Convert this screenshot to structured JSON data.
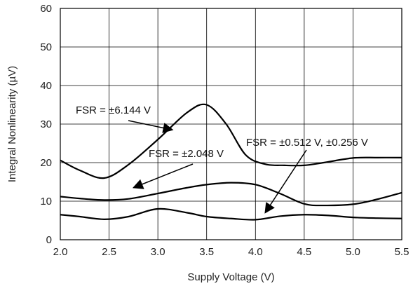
{
  "chart_data": {
    "type": "line",
    "title": "",
    "xlabel": "Supply Voltage (V)",
    "ylabel": "Integral Nonlinearity (µV)",
    "xlim": [
      2.0,
      5.5
    ],
    "ylim": [
      0,
      60
    ],
    "grid": true,
    "x_ticks": [
      "2.0",
      "2.5",
      "3.0",
      "3.5",
      "4.0",
      "4.5",
      "5.0",
      "5.5"
    ],
    "y_ticks": [
      "0",
      "10",
      "20",
      "30",
      "40",
      "50",
      "60"
    ],
    "series": [
      {
        "name": "FSR = ±6.144 V",
        "color": "#000000",
        "x": [
          2.0,
          2.2,
          2.45,
          2.7,
          3.0,
          3.3,
          3.5,
          3.7,
          3.9,
          4.1,
          4.3,
          4.5,
          4.7,
          5.0,
          5.25,
          5.5
        ],
        "y": [
          20.6,
          18.0,
          16.0,
          19.5,
          26.0,
          33.0,
          35.0,
          30.0,
          22.0,
          19.6,
          19.3,
          19.3,
          20.0,
          21.2,
          21.3,
          21.3
        ]
      },
      {
        "name": "FSR = ±2.048 V",
        "color": "#000000",
        "x": [
          2.0,
          2.2,
          2.45,
          2.7,
          3.0,
          3.3,
          3.5,
          3.75,
          4.0,
          4.25,
          4.5,
          4.7,
          5.0,
          5.25,
          5.5
        ],
        "y": [
          11.2,
          10.7,
          10.3,
          10.6,
          12.0,
          13.5,
          14.3,
          14.8,
          14.3,
          12.0,
          9.3,
          8.9,
          9.2,
          10.5,
          12.2
        ]
      },
      {
        "name": "FSR = ±0.512 V, ±0.256 V",
        "color": "#000000",
        "x": [
          2.0,
          2.2,
          2.45,
          2.7,
          3.0,
          3.3,
          3.5,
          3.75,
          4.0,
          4.25,
          4.5,
          4.75,
          5.0,
          5.25,
          5.5
        ],
        "y": [
          6.5,
          6.0,
          5.3,
          6.0,
          8.0,
          7.0,
          6.0,
          5.5,
          5.2,
          6.1,
          6.5,
          6.3,
          5.8,
          5.6,
          5.5
        ]
      }
    ],
    "annotations": [
      {
        "text": "FSR = ±6.144 V",
        "series": 0,
        "arrow_to": [
          3.15,
          28.5
        ]
      },
      {
        "text": "FSR = ±2.048 V",
        "series": 1,
        "arrow_to": [
          2.75,
          13.5
        ]
      },
      {
        "text": "FSR = ±0.512 V, ±0.256 V",
        "series": 2,
        "arrow_to": [
          4.1,
          7.0
        ]
      }
    ]
  }
}
